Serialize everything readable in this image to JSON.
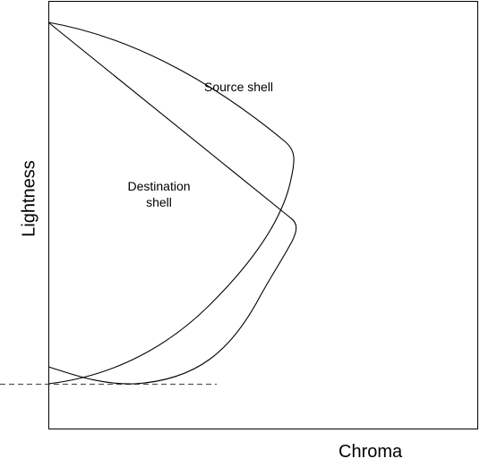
{
  "labels": {
    "source_shell": "Source shell",
    "destination_shell_line1": "Destination",
    "destination_shell_line2": "shell",
    "x_axis": "Chroma",
    "y_axis": "Lightness"
  },
  "colors": {
    "line": "#000000",
    "dashed_line": "#555555",
    "background": "#ffffff"
  }
}
